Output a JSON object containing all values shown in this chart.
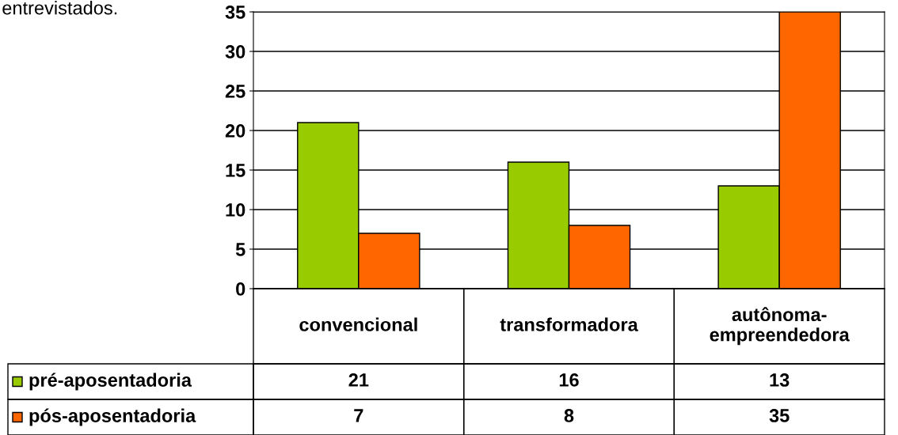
{
  "chart_data": {
    "type": "bar",
    "categories": [
      "convencional",
      "transformadora",
      "autônoma-\nempreendedora"
    ],
    "series": [
      {
        "name": "pré-aposentadoria",
        "color": "#99cc00",
        "values": [
          21,
          16,
          13
        ]
      },
      {
        "name": "pós-aposentadoria",
        "color": "#ff6600",
        "values": [
          7,
          8,
          35
        ]
      }
    ],
    "ylim": [
      0,
      35
    ],
    "yticks": [
      0,
      5,
      10,
      15,
      20,
      25,
      30,
      35
    ],
    "grid": "y",
    "legend": "bottom",
    "data_labels": true,
    "annotations": [
      "entrevistados."
    ]
  }
}
